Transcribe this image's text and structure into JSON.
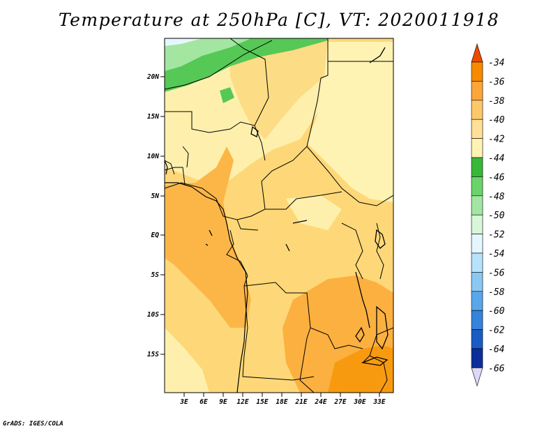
{
  "title": "Temperature at 250hPa [C], VT: 2020011918",
  "credit": "GrADS: IGES/COLA",
  "map": {
    "lat_labels": [
      "20N",
      "15N",
      "10N",
      "5N",
      "EQ",
      "5S",
      "10S",
      "15S"
    ],
    "lon_labels": [
      "3E",
      "6E",
      "9E",
      "12E",
      "15E",
      "18E",
      "21E",
      "24E",
      "27E",
      "30E",
      "33E"
    ]
  },
  "colorbar": {
    "labels": [
      "-34",
      "-36",
      "-38",
      "-40",
      "-42",
      "-44",
      "-46",
      "-48",
      "-50",
      "-52",
      "-54",
      "-56",
      "-58",
      "-60",
      "-62",
      "-64",
      "-66"
    ],
    "colors": [
      "#f05a00",
      "#f88a00",
      "#fca63a",
      "#fdc86a",
      "#fee098",
      "#fef3b3",
      "#38b838",
      "#6ad46a",
      "#a2e6a2",
      "#d8f6d8",
      "#e6f6fe",
      "#b6e2fa",
      "#8ac8f2",
      "#5aa6ea",
      "#3484dc",
      "#1a5cc4",
      "#0c2e9a",
      "#05105a"
    ],
    "top_color": "#f04a00",
    "bottom_color": "#dcd8f8"
  },
  "features": {
    "countries": "country-borders",
    "coastline": "coastline",
    "lakes": "lakes"
  }
}
